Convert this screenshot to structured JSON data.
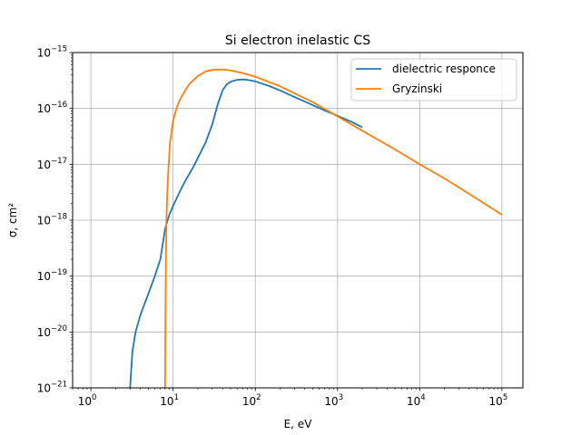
{
  "chart_data": {
    "type": "line",
    "title": "Si electron inelastic CS",
    "xlabel": "E, eV",
    "ylabel": "σ, cm²",
    "xscale": "log",
    "yscale": "log",
    "xlim": [
      0.6,
      180000
    ],
    "ylim": [
      1e-21,
      1e-15
    ],
    "grid": true,
    "legend_position": "top-right",
    "x_ticks": [
      {
        "base": "10",
        "exp": "0"
      },
      {
        "base": "10",
        "exp": "1"
      },
      {
        "base": "10",
        "exp": "2"
      },
      {
        "base": "10",
        "exp": "3"
      },
      {
        "base": "10",
        "exp": "4"
      },
      {
        "base": "10",
        "exp": "5"
      }
    ],
    "y_ticks": [
      {
        "base": "10",
        "exp": "−21"
      },
      {
        "base": "10",
        "exp": "−20"
      },
      {
        "base": "10",
        "exp": "−19"
      },
      {
        "base": "10",
        "exp": "−18"
      },
      {
        "base": "10",
        "exp": "−17"
      },
      {
        "base": "10",
        "exp": "−16"
      },
      {
        "base": "10",
        "exp": "−15"
      }
    ],
    "series": [
      {
        "name": "dielectric responce",
        "color": "#1f77b4",
        "x": [
          3.0,
          3.2,
          3.5,
          4.0,
          4.5,
          5.0,
          6.0,
          7.0,
          8.0,
          9.0,
          10,
          12,
          14,
          16,
          18,
          20,
          25,
          30,
          35,
          40,
          45,
          50,
          60,
          70,
          80,
          100,
          150,
          200,
          300,
          500,
          700,
          1000,
          1500,
          2000
        ],
        "y": [
          1e-21,
          4.5e-21,
          1e-20,
          2e-20,
          3.2e-20,
          4.8e-20,
          1e-19,
          2e-19,
          7e-19,
          1.25e-18,
          1.8e-18,
          3.2e-18,
          5e-18,
          7e-18,
          9.5e-18,
          1.3e-17,
          2.5e-17,
          5.2e-17,
          1.2e-16,
          2.1e-16,
          2.7e-16,
          3e-16,
          3.25e-16,
          3.3e-16,
          3.25e-16,
          3.05e-16,
          2.5e-16,
          2.1e-16,
          1.6e-16,
          1.15e-16,
          9.2e-17,
          7.4e-17,
          5.7e-17,
          4.6e-17
        ]
      },
      {
        "name": "Gryzinski",
        "color": "#ff7f0e",
        "x": [
          8.0,
          8.05,
          8.15,
          8.3,
          8.5,
          8.8,
          9.2,
          10,
          11,
          12,
          14,
          16,
          20,
          25,
          30,
          40,
          50,
          70,
          100,
          200,
          500,
          1000,
          2000,
          5000,
          10000,
          20000,
          50000,
          100000
        ],
        "y": [
          1e-21,
          1e-20,
          1e-19,
          1e-18,
          3e-18,
          9e-18,
          2.5e-17,
          6e-17,
          1e-16,
          1.4e-16,
          2.1e-16,
          2.8e-16,
          3.8e-16,
          4.6e-16,
          4.9e-16,
          5e-16,
          4.8e-16,
          4.3e-16,
          3.7e-16,
          2.5e-16,
          1.3e-16,
          7.2e-17,
          4e-17,
          1.85e-17,
          1e-17,
          5.6e-18,
          2.4e-18,
          1.25e-18
        ]
      }
    ]
  }
}
